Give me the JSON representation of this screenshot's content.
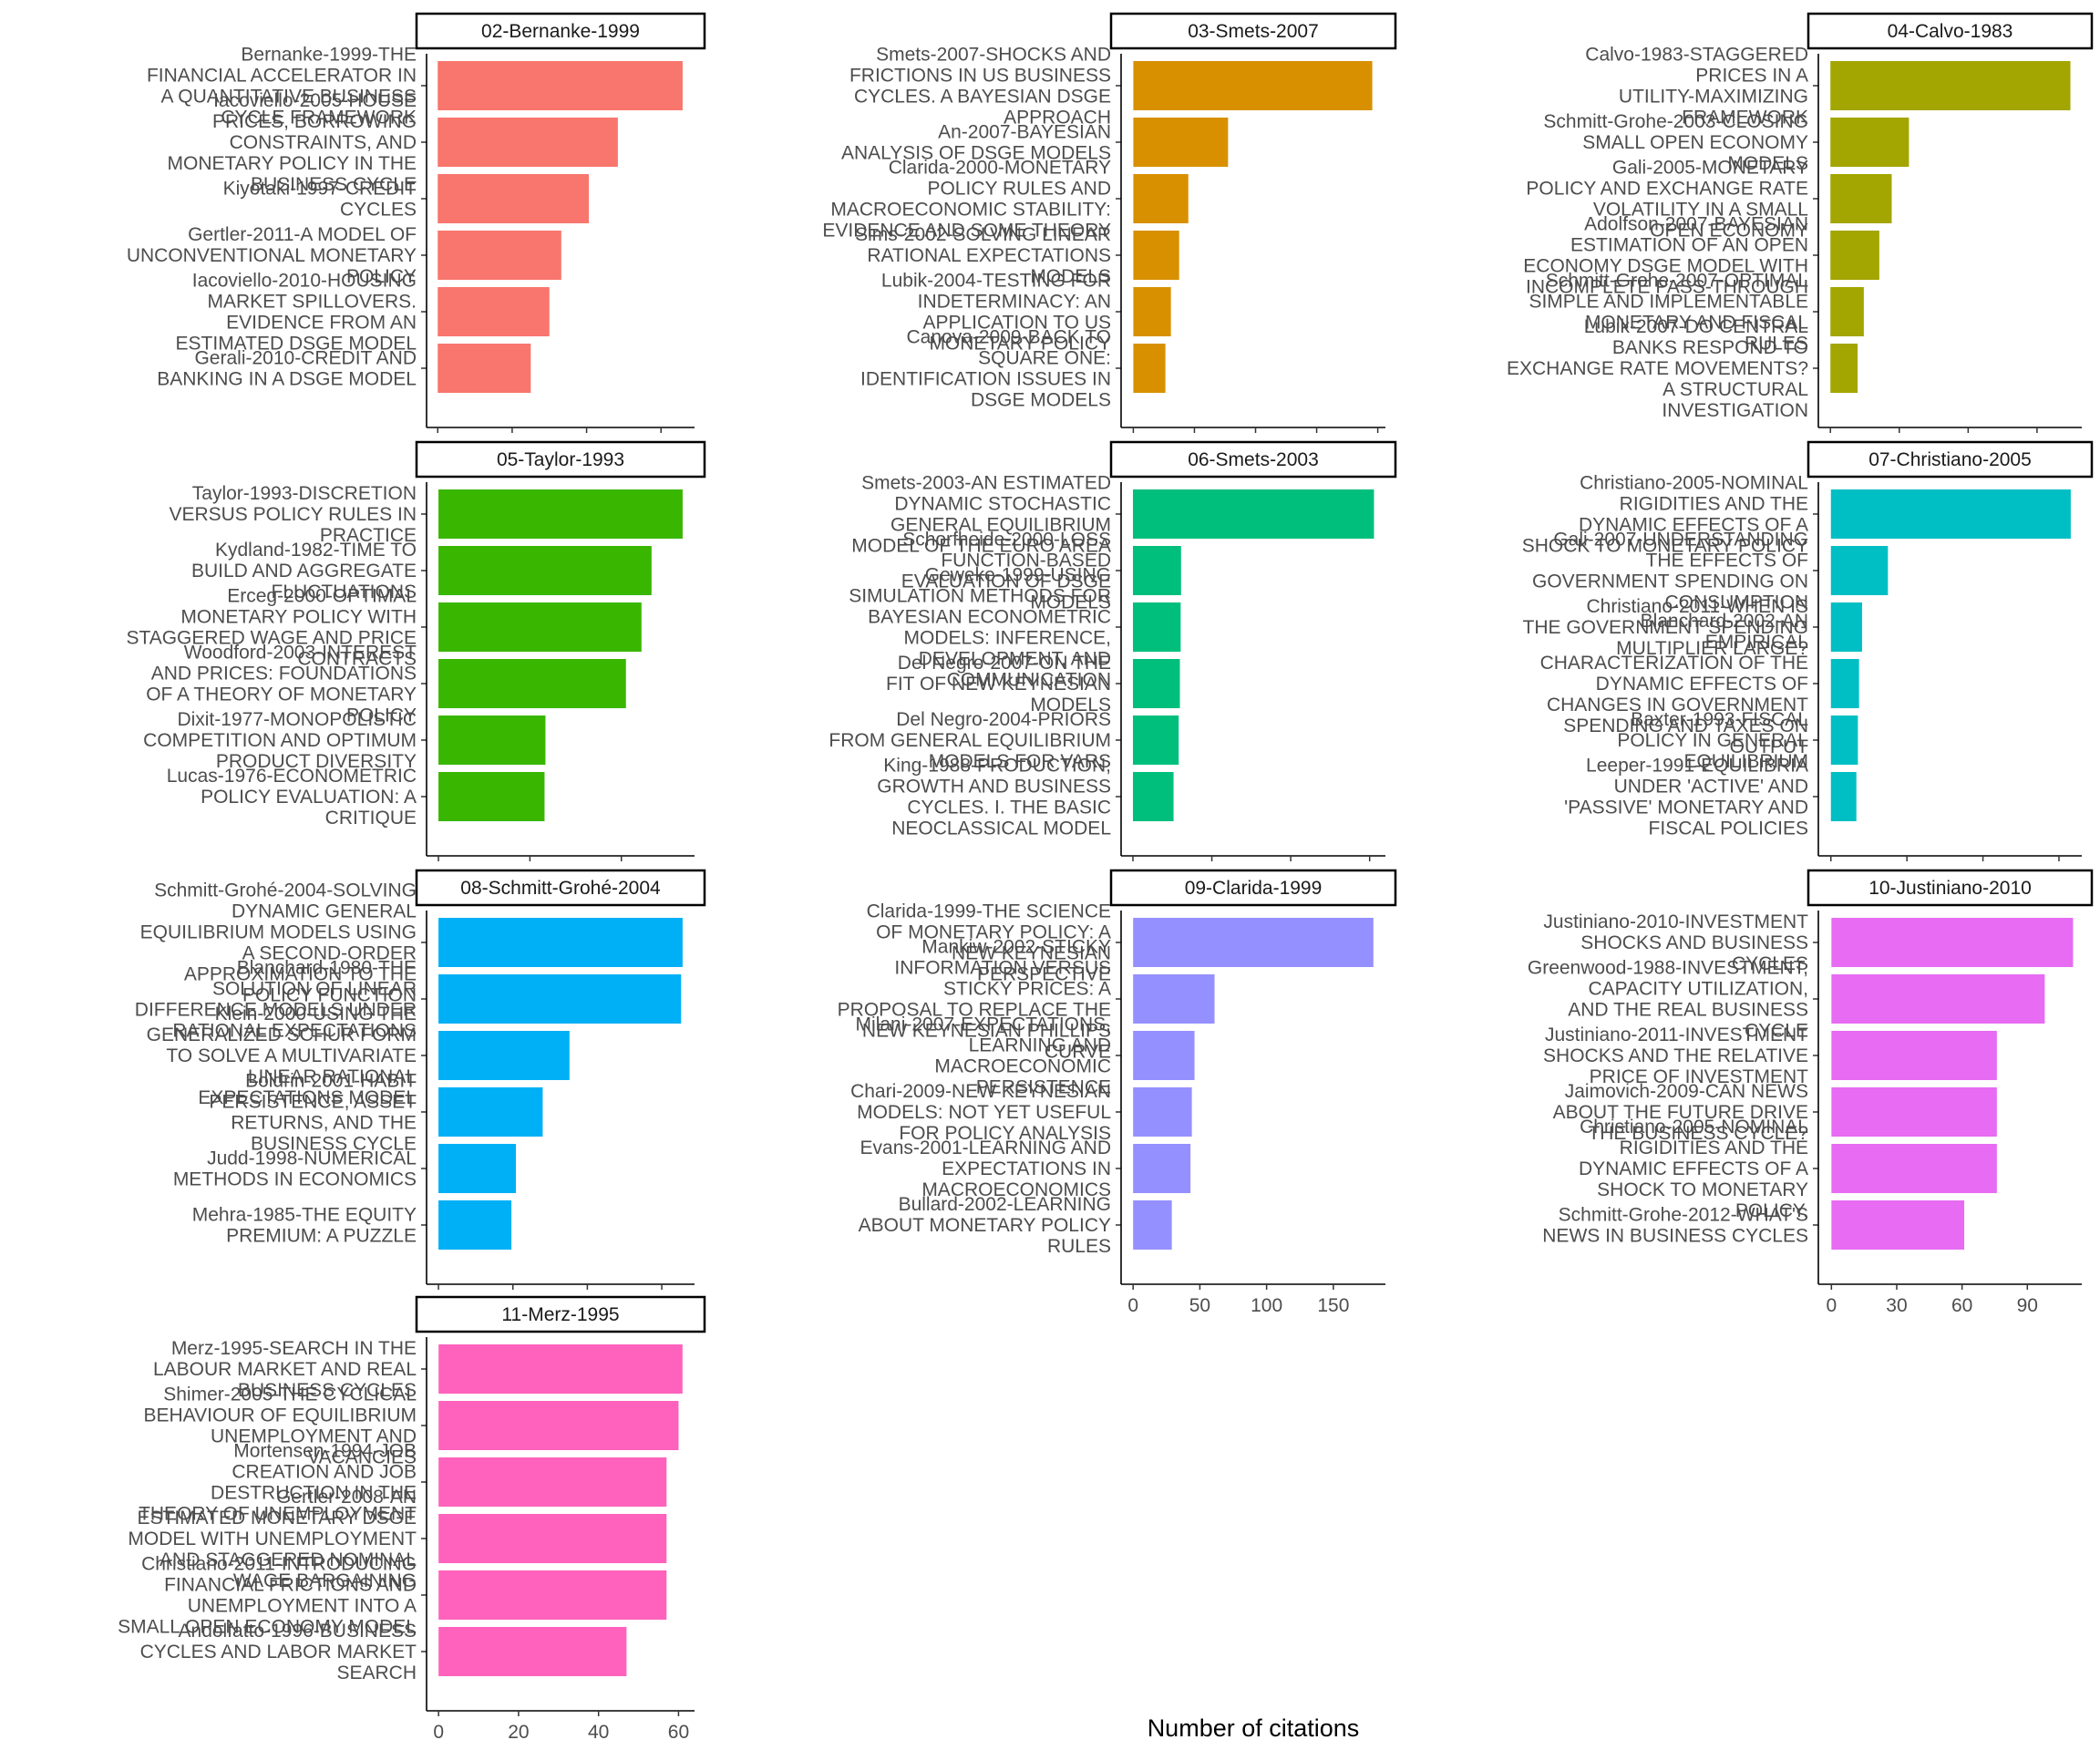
{
  "chart_data": {
    "type": "bar",
    "orientation": "horizontal",
    "xlabel": "Number of citations",
    "ylabel": "",
    "grid": false,
    "panels": [
      {
        "title": "02-Bernanke-1999",
        "color": "#F8766D",
        "ticks": [
          0,
          100,
          200,
          300
        ],
        "xlim": [
          -15,
          345
        ],
        "bars": [
          {
            "label": "Bernanke-1999-THE FINANCIAL ACCELERATOR IN A QUANTITATIVE BUSINESS CYCLE FRAMEWORK",
            "value": 329
          },
          {
            "label": "Iacoviello-2005-HOUSE PRICES, BORROWING CONSTRAINTS, AND MONETARY POLICY IN THE BUSINESS CYCLE",
            "value": 242
          },
          {
            "label": "Kiyotaki-1997-CREDIT CYCLES",
            "value": 203
          },
          {
            "label": "Gertler-2011-A MODEL OF UNCONVENTIONAL MONETARY POLICY",
            "value": 166
          },
          {
            "label": "Iacoviello-2010-HOUSING MARKET SPILLOVERS. EVIDENCE FROM AN ESTIMATED DSGE MODEL",
            "value": 150
          },
          {
            "label": "Gerali-2010-CREDIT AND BANKING IN A DSGE MODEL",
            "value": 125
          }
        ]
      },
      {
        "title": "03-Smets-2007",
        "color": "#D89000",
        "ticks": [
          0,
          200,
          400,
          600,
          800
        ],
        "xlim": [
          -40,
          825
        ],
        "bars": [
          {
            "label": "Smets-2007-SHOCKS AND FRICTIONS IN US BUSINESS CYCLES. A BAYESIAN DSGE APPROACH",
            "value": 782
          },
          {
            "label": "An-2007-BAYESIAN ANALYSIS OF DSGE MODELS",
            "value": 310
          },
          {
            "label": "Clarida-2000-MONETARY POLICY RULES AND MACROECONOMIC STABILITY: EVIDENCE AND SOME THEORY",
            "value": 180
          },
          {
            "label": "Sims-2002-SOLVING LINEAR RATIONAL EXPECTATIONS MODELS",
            "value": 150
          },
          {
            "label": "Lubik-2004-TESTING FOR INDETERMINACY: AN APPLICATION TO US MONETARY POLICY",
            "value": 123
          },
          {
            "label": "Canova-2009-BACK TO SQUARE ONE: IDENTIFICATION ISSUES IN DSGE MODELS",
            "value": 105
          }
        ]
      },
      {
        "title": "04-Calvo-1983",
        "color": "#A3A500",
        "ticks": [
          0,
          200,
          400,
          600
        ],
        "xlim": [
          -35,
          730
        ],
        "bars": [
          {
            "label": "Calvo-1983-STAGGERED PRICES IN A UTILITY-MAXIMIZING FRAMEWORK",
            "value": 697
          },
          {
            "label": "Schmitt-Grohe-2003-CLOSING SMALL OPEN ECONOMY MODELS",
            "value": 228
          },
          {
            "label": "Gali-2005-MONETARY POLICY AND EXCHANGE RATE VOLATILITY IN A SMALL OPEN ECONOMY",
            "value": 178
          },
          {
            "label": "Adolfson-2007-BAYESIAN ESTIMATION OF AN OPEN ECONOMY DSGE MODEL WITH INCOMPLETE PASS-THROUGH",
            "value": 142
          },
          {
            "label": "Schmitt-Grohe-2007-OPTIMAL SIMPLE AND IMPLEMENTABLE MONETARY AND FISCAL RULES",
            "value": 97
          },
          {
            "label": "Lubik-2007-DO CENTRAL BANKS RESPOND TO EXCHANGE RATE MOVEMENTS? A STRUCTURAL INVESTIGATION",
            "value": 79
          }
        ]
      },
      {
        "title": "05-Taylor-1993",
        "color": "#39B600",
        "ticks": [
          0,
          100,
          200
        ],
        "xlim": [
          -13,
          280
        ],
        "bars": [
          {
            "label": "Taylor-1993-DISCRETION VERSUS POLICY RULES IN PRACTICE",
            "value": 267
          },
          {
            "label": "Kydland-1982-TIME TO BUILD AND AGGREGATE FLUCTUATIONS",
            "value": 233
          },
          {
            "label": "Erceg-2000-OPTIMAL MONETARY POLICY WITH STAGGERED WAGE AND PRICE CONTRACTS",
            "value": 222
          },
          {
            "label": "Woodford-2003-INTEREST AND PRICES: FOUNDATIONS OF A THEORY OF MONETARY POLICY",
            "value": 205
          },
          {
            "label": "Dixit-1977-MONOPOLISTIC COMPETITION AND OPTIMUM PRODUCT DIVERSITY",
            "value": 117
          },
          {
            "label": "Lucas-1976-ECONOMETRIC POLICY EVALUATION: A CRITIQUE",
            "value": 116
          }
        ]
      },
      {
        "title": "06-Smets-2003",
        "color": "#00BF7D",
        "ticks": [
          0,
          200,
          400,
          600
        ],
        "xlim": [
          -30,
          640
        ],
        "bars": [
          {
            "label": "Smets-2003-AN ESTIMATED DYNAMIC STOCHASTIC GENERAL EQUILIBRIUM MODEL OF THE EURO AREA",
            "value": 611
          },
          {
            "label": "Schorfheide-2000-LOSS FUNCTION-BASED EVALUATION OF DSGE MODELS",
            "value": 122
          },
          {
            "label": "Geweke-1999-USING SIMULATION METHODS FOR BAYESIAN ECONOMETRIC MODELS: INFERENCE, DEVELOPMENT, AND COMMUNICATION",
            "value": 121
          },
          {
            "label": "Del Negro-2007-ON THE FIT OF NEW KEYNESIAN MODELS",
            "value": 119
          },
          {
            "label": "Del Negro-2004-PRIORS FROM GENERAL EQUILIBRIUM MODELS FOR VARS",
            "value": 116
          },
          {
            "label": "King-1988-PRODUCTION, GROWTH AND BUSINESS CYCLES. I. THE BASIC NEOCLASSICAL MODEL",
            "value": 103
          }
        ]
      },
      {
        "title": "07-Christiano-2005",
        "color": "#00BFC4",
        "ticks": [
          0,
          200,
          400,
          600
        ],
        "xlim": [
          -33,
          660
        ],
        "bars": [
          {
            "label": "Christiano-2005-NOMINAL RIGIDITIES AND THE DYNAMIC EFFECTS OF A SHOCK TO MONETARY POLICY",
            "value": 631
          },
          {
            "label": "Gali-2007-UNDERSTANDING THE EFFECTS OF GOVERNMENT SPENDING ON CONSUMPTION",
            "value": 150
          },
          {
            "label": "Christiano-2011-WHEN IS THE GOVERNMENT SPENDING MULTIPLIER LARGE?",
            "value": 82
          },
          {
            "label": "Blanchard-2002-AN EMPIRICAL CHARACTERIZATION OF THE DYNAMIC EFFECTS OF CHANGES IN GOVERNMENT SPENDING AND TAXES ON OUTPUT",
            "value": 74
          },
          {
            "label": "Baxter-1993-FISCAL POLICY IN GENERAL EQUILIBRIUM",
            "value": 71
          },
          {
            "label": "Leeper-1991-EQUILIBRIA UNDER 'ACTIVE' AND 'PASSIVE' MONETARY AND FISCAL POLICIES",
            "value": 67
          }
        ]
      },
      {
        "title": "08-Schmitt-Grohé-2004",
        "color": "#00B0F6",
        "ticks": [
          0,
          50,
          100,
          150
        ],
        "xlim": [
          -8,
          172
        ],
        "bars": [
          {
            "label": "Schmitt-Grohé-2004-SOLVING DYNAMIC GENERAL EQUILIBRIUM MODELS USING A SECOND-ORDER APPROXIMATION TO THE POLICY FUNCTION",
            "value": 164
          },
          {
            "label": "Blanchard-1980-THE SOLUTION OF LINEAR DIFFERENCE MODELS UNDER RATIONAL EXPECTATIONS",
            "value": 163
          },
          {
            "label": "Klein-2000-USING THE GENERALIZED SCHUR FORM TO SOLVE A MULTIVARIATE LINEAR RATIONAL EXPECTATIONS MODEL",
            "value": 88
          },
          {
            "label": "Boldrin-2001-HABIT PERSISTENCE, ASSET RETURNS, AND THE BUSINESS CYCLE",
            "value": 70
          },
          {
            "label": "Judd-1998-NUMERICAL METHODS IN ECONOMICS",
            "value": 52
          },
          {
            "label": "Mehra-1985-THE EQUITY PREMIUM: A PUZZLE",
            "value": 49
          }
        ]
      },
      {
        "title": "09-Clarida-1999",
        "color": "#9590FF",
        "ticks": [
          0,
          50,
          100,
          150
        ],
        "xlim": [
          -9,
          189
        ],
        "bars": [
          {
            "label": "Clarida-1999-THE SCIENCE OF MONETARY POLICY: A NEW KEYNESIAN PERSPECTIVE",
            "value": 180
          },
          {
            "label": "Mankiw-2002-STICKY INFORMATION VERSUS STICKY PRICES: A PROPOSAL TO REPLACE THE NEW KEYNESIAN PHILLIPS CURVE",
            "value": 61
          },
          {
            "label": "Milani-2007-EXPECTATIONS, LEARNING AND MACROECONOMIC PERSISTENCE",
            "value": 46
          },
          {
            "label": "Chari-2009-NEW KEYNESIAN MODELS: NOT YET USEFUL FOR POLICY ANALYSIS",
            "value": 44
          },
          {
            "label": "Evans-2001-LEARNING AND EXPECTATIONS IN MACROECONOMICS",
            "value": 43
          },
          {
            "label": "Bullard-2002-LEARNING ABOUT MONETARY POLICY RULES",
            "value": 29
          }
        ]
      },
      {
        "title": "10-Justiniano-2010",
        "color": "#E76BF3",
        "ticks": [
          0,
          30,
          60,
          90
        ],
        "xlim": [
          -6,
          115
        ],
        "bars": [
          {
            "label": "Justiniano-2010-INVESTMENT SHOCKS AND BUSINESS CYCLES",
            "value": 111
          },
          {
            "label": "Greenwood-1988-INVESTMENT, CAPACITY UTILIZATION, AND THE REAL BUSINESS CYCLE",
            "value": 98
          },
          {
            "label": "Justiniano-2011-INVESTMENT SHOCKS AND THE RELATIVE PRICE OF INVESTMENT",
            "value": 76
          },
          {
            "label": "Jaimovich-2009-CAN NEWS ABOUT THE FUTURE DRIVE THE BUSINESS CYCLE?",
            "value": 76
          },
          {
            "label": "Christiano-2005-NOMINAL RIGIDITIES AND THE DYNAMIC EFFECTS OF A SHOCK TO MONETARY POLICY.",
            "value": 76
          },
          {
            "label": "Schmitt-Grohe-2012-WHAT'S NEWS IN BUSINESS CYCLES",
            "value": 61
          }
        ]
      },
      {
        "title": "11-Merz-1995",
        "color": "#FF62BC",
        "ticks": [
          0,
          20,
          40,
          60
        ],
        "xlim": [
          -3,
          64
        ],
        "bars": [
          {
            "label": "Merz-1995-SEARCH IN THE LABOUR MARKET AND REAL BUSINESS CYCLES",
            "value": 61
          },
          {
            "label": "Shimer-2005-THE CYCLICAL BEHAVIOUR OF EQUILIBRIUM UNEMPLOYMENT AND VACANCIES",
            "value": 60
          },
          {
            "label": "Mortensen-1994-JOB CREATION AND JOB DESTRUCTION IN THE THEORY OF UNEMPLOYMENT",
            "value": 57
          },
          {
            "label": "Gertler-2008-AN ESTIMATED MONETARY DSGE MODEL WITH UNEMPLOYMENT AND STAGGERED NOMINAL WAGE BARGAINING",
            "value": 57
          },
          {
            "label": "Christiano-2011-INTRODUCING FINANCIAL FRICTIONS AND UNEMPLOYMENT INTO A SMALL OPEN ECONOMY MODEL",
            "value": 57
          },
          {
            "label": "Andolfatto-1996-BUSINESS CYCLES AND LABOR MARKET SEARCH",
            "value": 47
          }
        ]
      }
    ]
  }
}
